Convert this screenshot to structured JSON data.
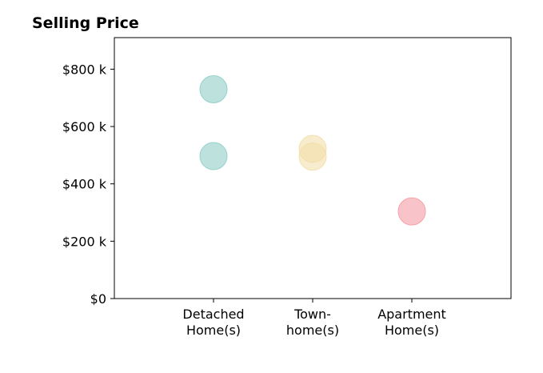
{
  "chart_data": {
    "type": "scatter",
    "title": "Selling Price",
    "xlabel": "",
    "ylabel": "",
    "categories": [
      [
        "Detached",
        "Home(s)"
      ],
      [
        "Town-",
        "home(s)"
      ],
      [
        "Apartment",
        "Home(s)"
      ]
    ],
    "ylim": [
      0,
      910
    ],
    "y_ticks": [
      {
        "value": 0,
        "label": "$0"
      },
      {
        "value": 200,
        "label": "$200 k"
      },
      {
        "value": 400,
        "label": "$400 k"
      },
      {
        "value": 600,
        "label": "$600 k"
      },
      {
        "value": 800,
        "label": "$800 k"
      }
    ],
    "points": [
      {
        "category": 0,
        "value": 730,
        "color": "#8ecdc6"
      },
      {
        "category": 0,
        "value": 497,
        "color": "#8ecdc6"
      },
      {
        "category": 1,
        "value": 522,
        "color": "#f2dfa9"
      },
      {
        "category": 1,
        "value": 495,
        "color": "#f2dfa9"
      },
      {
        "category": 2,
        "value": 304,
        "color": "#f49aa2"
      }
    ],
    "grid": false,
    "legend": "none"
  }
}
